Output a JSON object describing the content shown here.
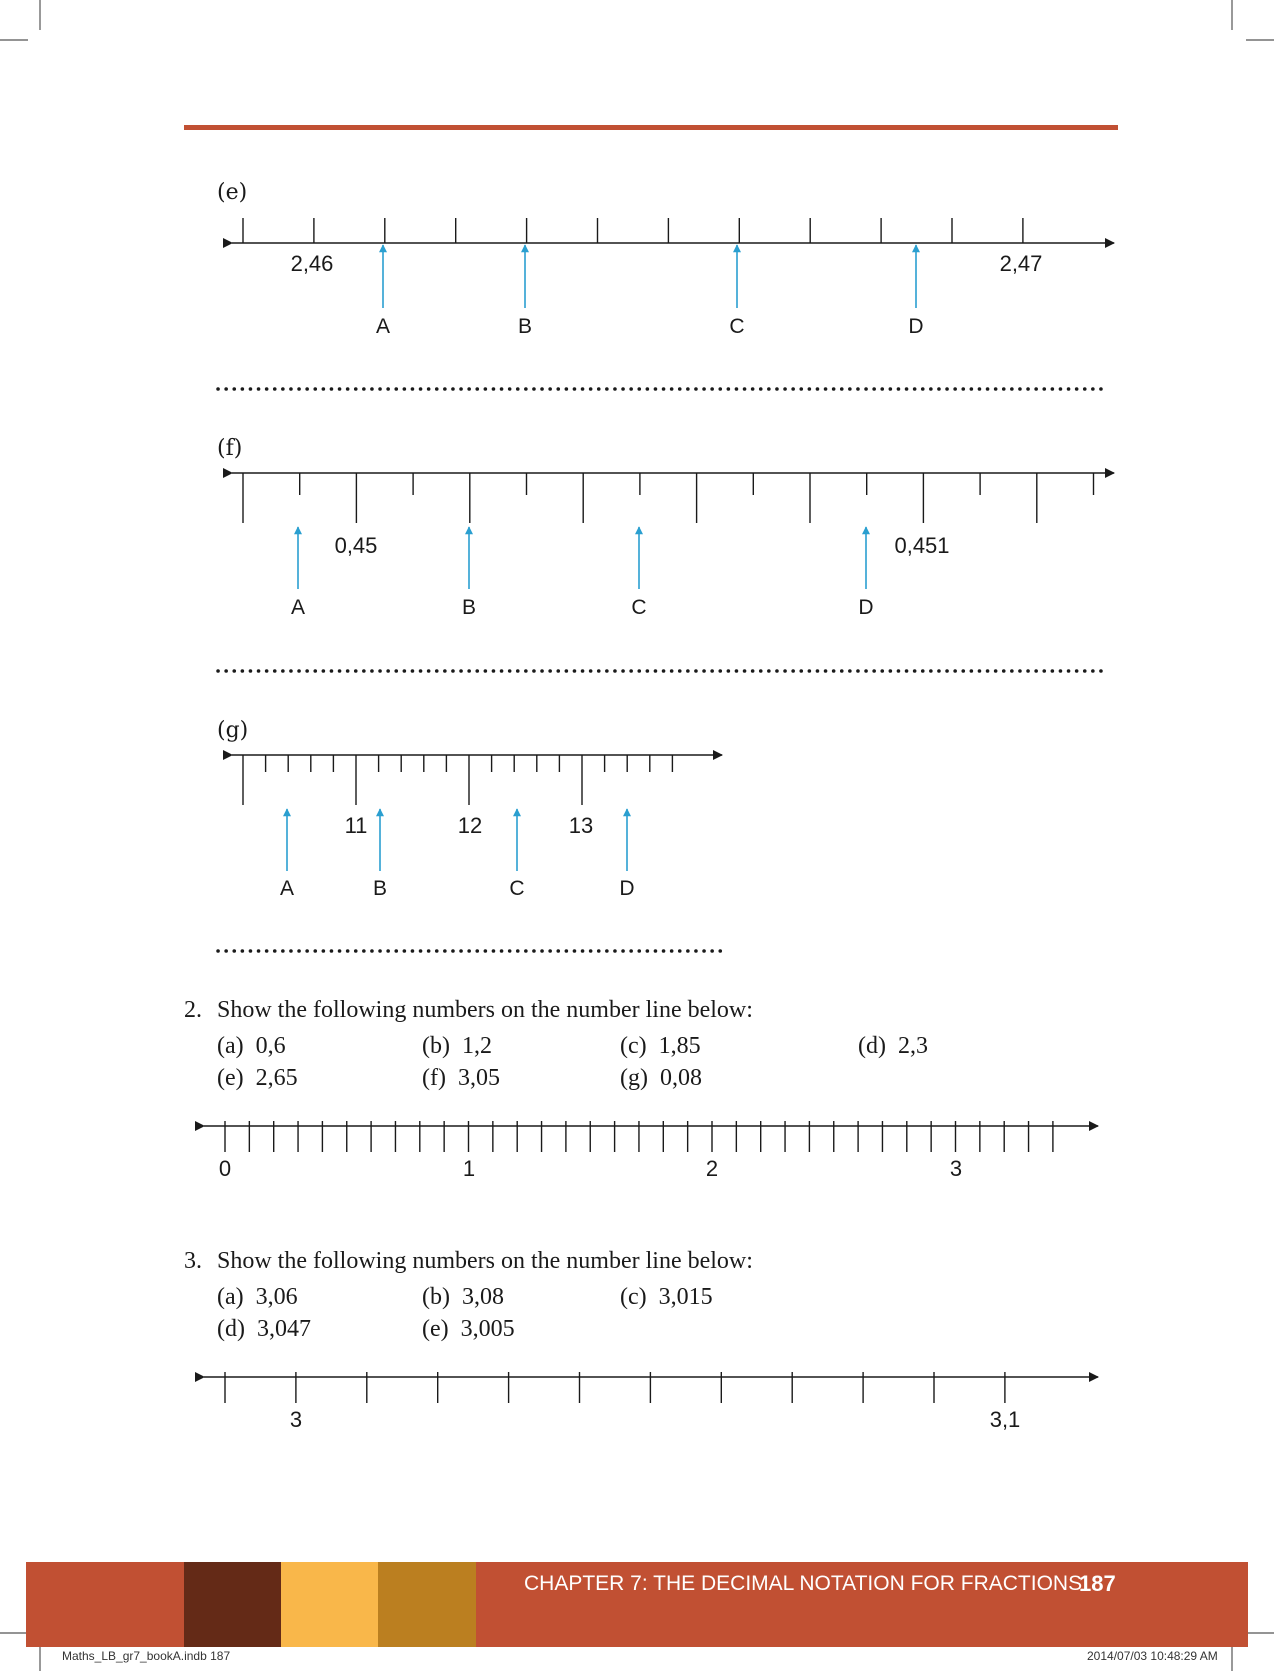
{
  "exercise_1": {
    "e": {
      "label": "(e)",
      "start_value": "2,46",
      "end_value": "2,47",
      "points": [
        "A",
        "B",
        "C",
        "D"
      ]
    },
    "f": {
      "label": "(f)",
      "start_value": "0,45",
      "end_value": "0,451",
      "points": [
        "A",
        "B",
        "C",
        "D"
      ]
    },
    "g": {
      "label": "(g)",
      "tick_values": [
        "11",
        "12",
        "13"
      ],
      "points": [
        "A",
        "B",
        "C",
        "D"
      ]
    }
  },
  "question_2": {
    "number": "2.",
    "prompt": "Show the following numbers on the number line below:",
    "options": [
      {
        "letter": "(a)",
        "value": "0,6"
      },
      {
        "letter": "(b)",
        "value": "1,2"
      },
      {
        "letter": "(c)",
        "value": "1,85"
      },
      {
        "letter": "(d)",
        "value": "2,3"
      },
      {
        "letter": "(e)",
        "value": "2,65"
      },
      {
        "letter": "(f)",
        "value": "3,05"
      },
      {
        "letter": "(g)",
        "value": "0,08"
      }
    ],
    "line_labels": [
      "0",
      "1",
      "2",
      "3"
    ]
  },
  "question_3": {
    "number": "3.",
    "prompt": "Show the following numbers on the number line below:",
    "options": [
      {
        "letter": "(a)",
        "value": "3,06"
      },
      {
        "letter": "(b)",
        "value": "3,08"
      },
      {
        "letter": "(c)",
        "value": "3,015"
      },
      {
        "letter": "(d)",
        "value": "3,047"
      },
      {
        "letter": "(e)",
        "value": "3,005"
      }
    ],
    "line_labels": [
      "3",
      "3,1"
    ]
  },
  "footer": {
    "chapter": "CHAPTER 7: THE DECIMAL NOTATION FOR FRACTIONS",
    "page_number": "187",
    "colors": {
      "main": "#c15033",
      "block_1": "#642a17",
      "block_2": "#f9b74a",
      "block_3": "#bb7f20"
    }
  },
  "slug": {
    "file": "Maths_LB_gr7_bookA.indb   187",
    "timestamp": "2014/07/03   10:48:29 AM"
  },
  "colors": {
    "header_rule": "#c15033",
    "pointer": "#2a9fd0"
  }
}
